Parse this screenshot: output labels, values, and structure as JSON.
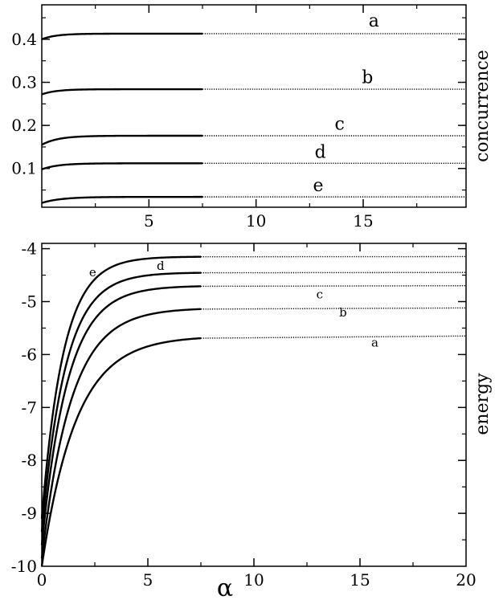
{
  "chart_data": [
    {
      "type": "line",
      "ylabel": "concurrence",
      "xlabel": "",
      "xlim": [
        0,
        19.8
      ],
      "ylim": [
        0.01,
        0.48
      ],
      "xticks": [
        5,
        10,
        15
      ],
      "yticks": [
        0.1,
        0.2,
        0.3,
        0.4
      ],
      "ytick_labels": [
        "0.1",
        "0.2",
        "0.3",
        "0.4"
      ],
      "xtick_labels": [
        "5",
        "10",
        "15"
      ],
      "series": [
        {
          "name": "a",
          "start": 0.4,
          "end": 0.413,
          "rate": 1.5,
          "label_x": 15.5,
          "label_y": 0.43
        },
        {
          "name": "b",
          "start": 0.272,
          "end": 0.284,
          "rate": 1.5,
          "label_x": 15.2,
          "label_y": 0.298
        },
        {
          "name": "c",
          "start": 0.155,
          "end": 0.176,
          "rate": 1.3,
          "label_x": 13.9,
          "label_y": 0.19
        },
        {
          "name": "d",
          "start": 0.098,
          "end": 0.112,
          "rate": 1.3,
          "label_x": 13.0,
          "label_y": 0.125
        },
        {
          "name": "e",
          "start": 0.02,
          "end": 0.034,
          "rate": 1.1,
          "label_x": 12.9,
          "label_y": 0.047
        }
      ]
    },
    {
      "type": "line",
      "xlabel": "α",
      "ylabel": "energy",
      "xlim": [
        0,
        20
      ],
      "ylim": [
        -10,
        -3.9
      ],
      "xticks": [
        0,
        5,
        10,
        15,
        20
      ],
      "xtick_labels": [
        "0",
        "5",
        "10",
        "15",
        "20"
      ],
      "yticks": [
        -10,
        -9,
        -8,
        -7,
        -6,
        -5,
        -4
      ],
      "ytick_labels": [
        "-10",
        "-9",
        "-8",
        "-7",
        "-6",
        "-5",
        "-4"
      ],
      "series": [
        {
          "name": "a",
          "start": -10.0,
          "end": -5.65,
          "rate": 0.62,
          "label_x": 15.7,
          "label_y": -5.85
        },
        {
          "name": "b",
          "start": -9.85,
          "end": -5.12,
          "rate": 0.72,
          "label_x": 14.2,
          "label_y": -5.28
        },
        {
          "name": "c",
          "start": -9.6,
          "end": -4.7,
          "rate": 0.82,
          "label_x": 13.1,
          "label_y": -4.94
        },
        {
          "name": "d",
          "start": -9.35,
          "end": -4.45,
          "rate": 0.9,
          "label_x": 5.6,
          "label_y": -4.4
        },
        {
          "name": "e",
          "start": -9.1,
          "end": -4.15,
          "rate": 0.98,
          "label_x": 2.4,
          "label_y": -4.52
        }
      ]
    }
  ]
}
